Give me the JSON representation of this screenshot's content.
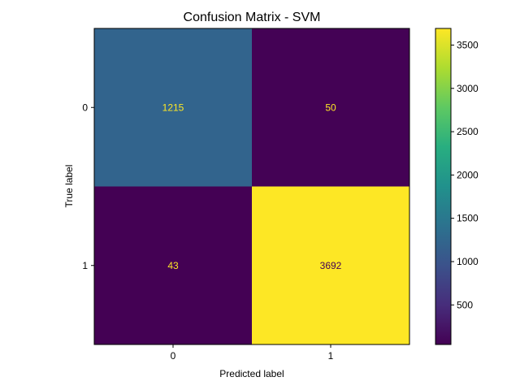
{
  "chart_data": {
    "type": "heatmap",
    "title": "Confusion Matrix - SVM",
    "xlabel": "Predicted label",
    "ylabel": "True label",
    "x_categories": [
      "0",
      "1"
    ],
    "y_categories": [
      "0",
      "1"
    ],
    "matrix": [
      [
        1215,
        50
      ],
      [
        43,
        3692
      ]
    ],
    "colormap": "viridis",
    "colorbar": {
      "range": [
        43,
        3692
      ],
      "ticks": [
        500,
        1000,
        1500,
        2000,
        2500,
        3000,
        3500
      ],
      "tick_labels": [
        "500",
        "1000",
        "1500",
        "2000",
        "2500",
        "3000",
        "3500"
      ]
    },
    "cell_text_colors": {
      "on_dark": "#fde725",
      "on_light": "#440154"
    },
    "grid": false
  }
}
